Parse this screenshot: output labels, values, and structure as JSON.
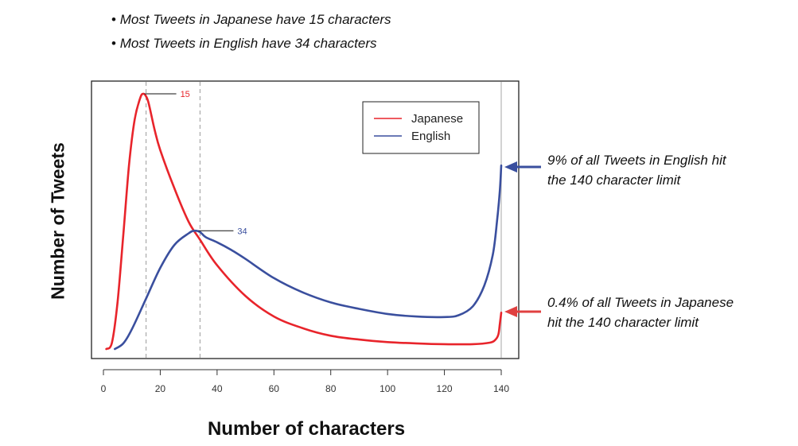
{
  "notes": [
    "Most Tweets in Japanese have 15 characters",
    "Most Tweets in English have 34 characters"
  ],
  "annotations": {
    "english": [
      "9% of all Tweets in English hit",
      "the 140 character limit"
    ],
    "japanese": [
      "0.4% of all Tweets in Japanese",
      "hit the 140 character limit"
    ]
  },
  "colors": {
    "japanese": "#e8242b",
    "english": "#3a4f9e",
    "arrow_english": "#3a4f9e",
    "arrow_japanese": "#e04040"
  },
  "chart_data": {
    "type": "line",
    "xlabel": "Number of characters",
    "ylabel": "Number of Tweets",
    "xlim": [
      0,
      145
    ],
    "ylim": [
      0,
      1
    ],
    "xticks": [
      0,
      20,
      40,
      60,
      80,
      100,
      120,
      140
    ],
    "yticks": [],
    "grid": false,
    "legend": {
      "position": "top-right",
      "entries": [
        "Japanese",
        "English"
      ]
    },
    "reference_lines": [
      15,
      34,
      140
    ],
    "peak_labels": [
      {
        "x": 15,
        "y": 1.0,
        "text": "15",
        "series": "Japanese"
      },
      {
        "x": 34,
        "y": 0.465,
        "text": "34",
        "series": "English"
      }
    ],
    "series": [
      {
        "name": "Japanese",
        "x": [
          1,
          3,
          5,
          7,
          9,
          11,
          13,
          14,
          15,
          16,
          18,
          20,
          25,
          30,
          34,
          40,
          50,
          60,
          70,
          80,
          90,
          100,
          110,
          120,
          130,
          136,
          138,
          139,
          139.5,
          140
        ],
        "y": [
          0.003,
          0.028,
          0.19,
          0.45,
          0.72,
          0.9,
          0.985,
          1.0,
          0.99,
          0.96,
          0.86,
          0.78,
          0.63,
          0.5,
          0.43,
          0.33,
          0.21,
          0.13,
          0.085,
          0.055,
          0.04,
          0.03,
          0.025,
          0.022,
          0.022,
          0.028,
          0.04,
          0.06,
          0.1,
          0.145
        ]
      },
      {
        "name": "English",
        "x": [
          4,
          7,
          10,
          15,
          20,
          25,
          30,
          32,
          34,
          36,
          40,
          45,
          50,
          60,
          70,
          80,
          90,
          100,
          110,
          120,
          125,
          130,
          134,
          137,
          138.5,
          139.5,
          140
        ],
        "y": [
          0.003,
          0.025,
          0.08,
          0.2,
          0.32,
          0.41,
          0.455,
          0.465,
          0.46,
          0.44,
          0.42,
          0.39,
          0.355,
          0.28,
          0.225,
          0.185,
          0.16,
          0.14,
          0.13,
          0.128,
          0.135,
          0.17,
          0.25,
          0.37,
          0.5,
          0.62,
          0.72
        ]
      }
    ]
  }
}
